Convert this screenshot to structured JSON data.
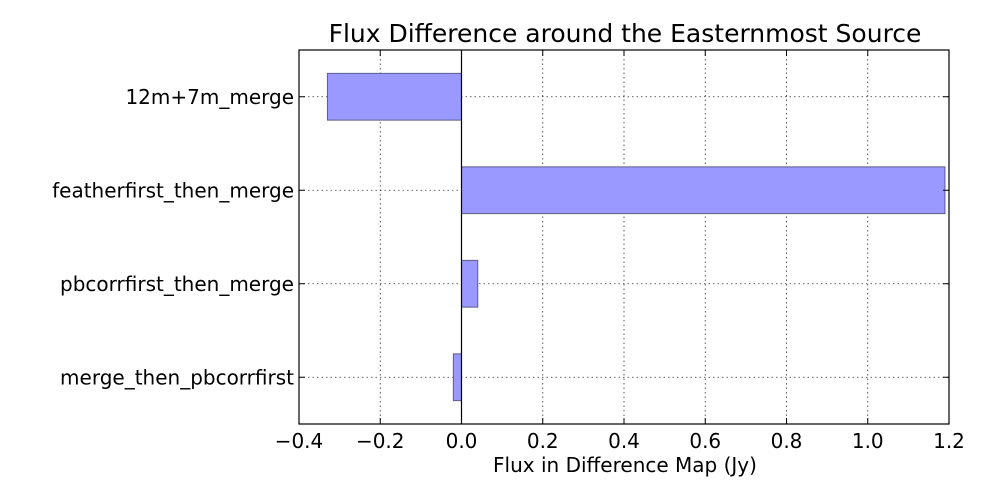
{
  "chart_data": {
    "type": "bar",
    "orientation": "horizontal",
    "title": "Flux Difference around the Easternmost Source",
    "xlabel": "Flux in Difference Map (Jy)",
    "ylabel": "",
    "categories": [
      "12m+7m_merge",
      "featherfirst_then_merge",
      "pbcorrfirst_then_merge",
      "merge_then_pbcorrfirst"
    ],
    "values": [
      -0.33,
      1.19,
      0.04,
      -0.02
    ],
    "xlim": [
      -0.4,
      1.2
    ],
    "xticks": [
      -0.4,
      -0.2,
      0.0,
      0.2,
      0.4,
      0.6,
      0.8,
      1.0,
      1.2
    ],
    "xtick_labels": [
      "−0.4",
      "−0.2",
      "0.0",
      "0.2",
      "0.4",
      "0.6",
      "0.8",
      "1.0",
      "1.2"
    ],
    "grid": true,
    "bar_color": "#9999ff"
  }
}
